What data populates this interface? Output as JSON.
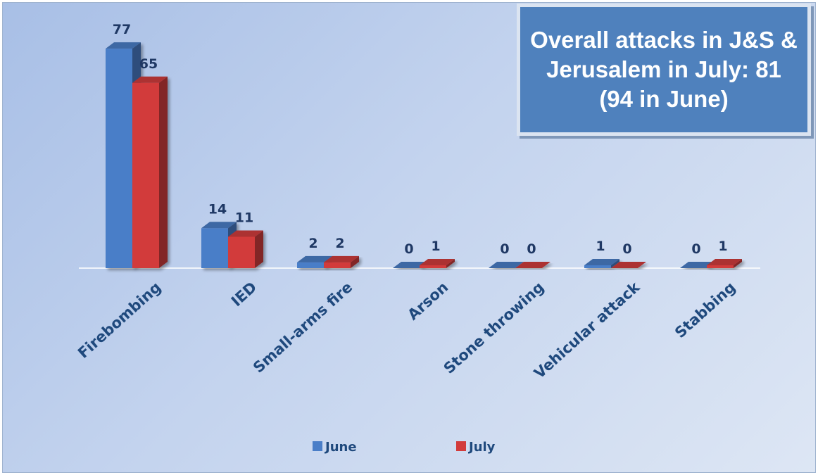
{
  "chart_data": {
    "type": "bar",
    "title": "Overall attacks in J&S & Jerusalem in July: 81 (94 in June)",
    "categories": [
      "Firebombing",
      "IED",
      "Small-arms fire",
      "Arson",
      "Stone throwing",
      "Vehicular attack",
      "Stabbing"
    ],
    "series": [
      {
        "name": "June",
        "values": [
          77,
          14,
          2,
          0,
          0,
          1,
          0
        ],
        "color": "#4a7ec8"
      },
      {
        "name": "July",
        "values": [
          65,
          11,
          2,
          1,
          0,
          0,
          1
        ],
        "color": "#d23b3b"
      }
    ],
    "ylim": [
      0,
      80
    ],
    "grid": false,
    "legend_position": "bottom",
    "style": "3d-bars"
  }
}
